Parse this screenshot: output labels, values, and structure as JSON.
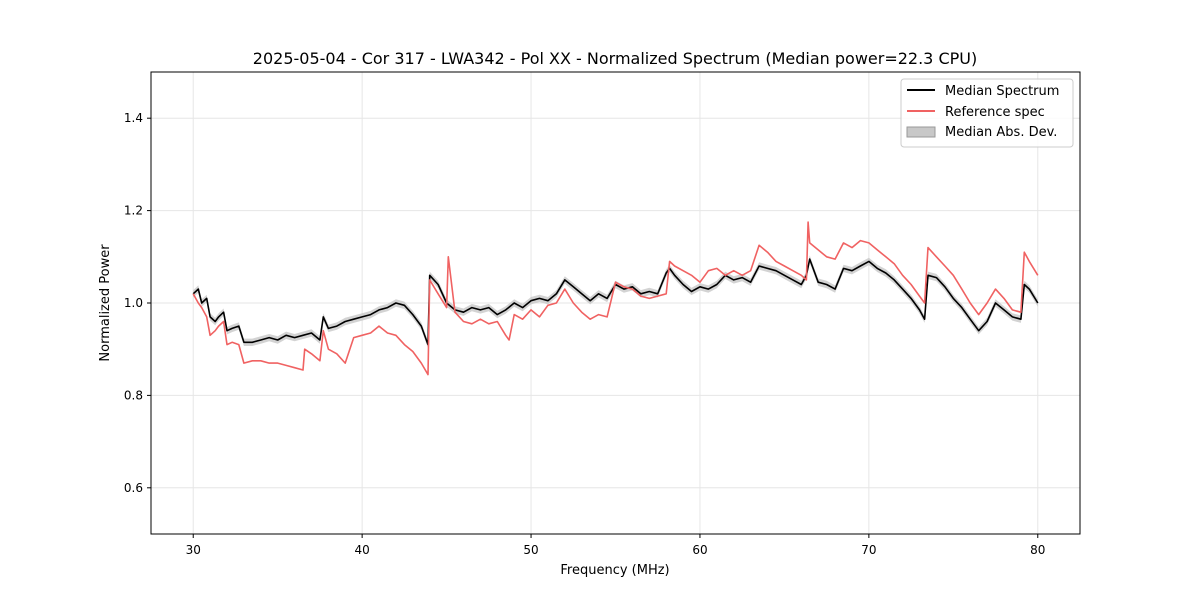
{
  "chart_data": {
    "type": "line",
    "title": "2025-05-04 - Cor 317 - LWA342 - Pol XX - Normalized Spectrum (Median power=22.3 CPU)",
    "xlabel": "Frequency (MHz)",
    "ylabel": "Normalized Power",
    "xlim": [
      27.5,
      82.5
    ],
    "ylim": [
      0.5,
      1.5
    ],
    "xticks": [
      30,
      40,
      50,
      60,
      70,
      80
    ],
    "yticks": [
      0.6,
      0.8,
      1.0,
      1.2,
      1.4
    ],
    "xtick_labels": [
      "30",
      "40",
      "50",
      "60",
      "70",
      "80"
    ],
    "ytick_labels": [
      "0.6",
      "0.8",
      "1.0",
      "1.2",
      "1.4"
    ],
    "grid": true,
    "legend_position": "top-right",
    "legend": [
      "Median Spectrum",
      "Reference spec",
      "Median Abs. Dev."
    ],
    "colors": {
      "median": "#000000",
      "reference": "#f06262",
      "mad": "#c8c8c8",
      "grid": "#e6e6e6"
    },
    "series": [
      {
        "name": "Median Spectrum",
        "x": [
          30.0,
          30.3,
          30.5,
          30.8,
          31.0,
          31.3,
          31.5,
          31.8,
          32.0,
          32.3,
          32.7,
          33.0,
          33.5,
          34.0,
          34.5,
          35.0,
          35.5,
          36.0,
          36.5,
          37.0,
          37.5,
          37.7,
          38.0,
          38.5,
          39.0,
          39.5,
          40.0,
          40.5,
          41.0,
          41.5,
          42.0,
          42.5,
          43.0,
          43.5,
          43.9,
          44.0,
          44.5,
          45.0,
          45.5,
          46.0,
          46.5,
          47.0,
          47.5,
          48.0,
          48.5,
          49.0,
          49.5,
          50.0,
          50.5,
          51.0,
          51.5,
          52.0,
          52.5,
          53.0,
          53.5,
          54.0,
          54.5,
          55.0,
          55.5,
          56.0,
          56.5,
          57.0,
          57.5,
          58.0,
          58.2,
          58.5,
          59.0,
          59.5,
          60.0,
          60.5,
          61.0,
          61.5,
          62.0,
          62.5,
          63.0,
          63.5,
          64.0,
          64.5,
          65.0,
          65.5,
          66.0,
          66.3,
          66.5,
          67.0,
          67.5,
          68.0,
          68.5,
          69.0,
          69.5,
          70.0,
          70.5,
          71.0,
          71.5,
          72.0,
          72.5,
          73.0,
          73.3,
          73.5,
          74.0,
          74.5,
          75.0,
          75.5,
          76.0,
          76.5,
          77.0,
          77.5,
          78.0,
          78.5,
          79.0,
          79.2,
          79.5,
          80.0
        ],
        "values": [
          1.02,
          1.03,
          1.0,
          1.01,
          0.97,
          0.96,
          0.97,
          0.98,
          0.94,
          0.945,
          0.95,
          0.915,
          0.915,
          0.92,
          0.925,
          0.92,
          0.93,
          0.925,
          0.93,
          0.935,
          0.92,
          0.97,
          0.945,
          0.95,
          0.96,
          0.965,
          0.97,
          0.975,
          0.985,
          0.99,
          1.0,
          0.995,
          0.975,
          0.95,
          0.91,
          1.06,
          1.04,
          1.0,
          0.985,
          0.98,
          0.99,
          0.985,
          0.99,
          0.975,
          0.985,
          1.0,
          0.99,
          1.005,
          1.01,
          1.005,
          1.02,
          1.05,
          1.035,
          1.02,
          1.005,
          1.02,
          1.01,
          1.04,
          1.03,
          1.035,
          1.02,
          1.025,
          1.02,
          1.065,
          1.075,
          1.06,
          1.04,
          1.025,
          1.035,
          1.03,
          1.04,
          1.06,
          1.05,
          1.055,
          1.045,
          1.08,
          1.075,
          1.07,
          1.06,
          1.05,
          1.04,
          1.06,
          1.095,
          1.045,
          1.04,
          1.03,
          1.075,
          1.07,
          1.08,
          1.09,
          1.075,
          1.065,
          1.05,
          1.03,
          1.01,
          0.985,
          0.965,
          1.06,
          1.055,
          1.035,
          1.01,
          0.99,
          0.965,
          0.94,
          0.96,
          1.0,
          0.985,
          0.97,
          0.965,
          1.04,
          1.03,
          1.0
        ]
      },
      {
        "name": "Reference spec",
        "x": [
          30.0,
          30.3,
          30.5,
          30.8,
          31.0,
          31.3,
          31.5,
          31.8,
          32.0,
          32.3,
          32.7,
          33.0,
          33.5,
          34.0,
          34.5,
          35.0,
          35.5,
          36.0,
          36.5,
          36.6,
          37.0,
          37.5,
          37.7,
          38.0,
          38.5,
          39.0,
          39.5,
          40.0,
          40.5,
          41.0,
          41.5,
          42.0,
          42.5,
          43.0,
          43.5,
          43.9,
          44.0,
          44.5,
          45.0,
          45.1,
          45.5,
          46.0,
          46.5,
          47.0,
          47.5,
          48.0,
          48.5,
          48.7,
          49.0,
          49.5,
          50.0,
          50.5,
          51.0,
          51.5,
          52.0,
          52.5,
          53.0,
          53.5,
          54.0,
          54.5,
          55.0,
          55.5,
          56.0,
          56.5,
          57.0,
          57.5,
          58.0,
          58.2,
          58.5,
          59.0,
          59.5,
          60.0,
          60.5,
          61.0,
          61.5,
          62.0,
          62.5,
          63.0,
          63.5,
          64.0,
          64.5,
          65.0,
          65.5,
          66.0,
          66.3,
          66.4,
          66.5,
          67.0,
          67.5,
          68.0,
          68.5,
          69.0,
          69.5,
          70.0,
          70.5,
          71.0,
          71.5,
          72.0,
          72.5,
          73.0,
          73.3,
          73.5,
          74.0,
          74.5,
          75.0,
          75.5,
          76.0,
          76.5,
          77.0,
          77.5,
          78.0,
          78.5,
          79.0,
          79.2,
          79.5,
          80.0
        ],
        "values": [
          1.02,
          1.0,
          0.99,
          0.97,
          0.93,
          0.94,
          0.95,
          0.96,
          0.91,
          0.915,
          0.91,
          0.87,
          0.875,
          0.875,
          0.87,
          0.87,
          0.865,
          0.86,
          0.855,
          0.9,
          0.89,
          0.875,
          0.94,
          0.9,
          0.89,
          0.87,
          0.925,
          0.93,
          0.935,
          0.95,
          0.935,
          0.93,
          0.91,
          0.895,
          0.87,
          0.845,
          1.05,
          1.02,
          0.99,
          1.1,
          0.98,
          0.96,
          0.955,
          0.965,
          0.955,
          0.96,
          0.93,
          0.92,
          0.975,
          0.965,
          0.985,
          0.97,
          0.995,
          1.0,
          1.03,
          1.0,
          0.98,
          0.965,
          0.975,
          0.97,
          1.045,
          1.035,
          1.03,
          1.015,
          1.01,
          1.015,
          1.02,
          1.09,
          1.08,
          1.07,
          1.06,
          1.045,
          1.07,
          1.075,
          1.06,
          1.07,
          1.06,
          1.07,
          1.125,
          1.11,
          1.09,
          1.08,
          1.07,
          1.06,
          1.05,
          1.175,
          1.13,
          1.115,
          1.1,
          1.095,
          1.13,
          1.12,
          1.135,
          1.13,
          1.115,
          1.1,
          1.085,
          1.06,
          1.04,
          1.015,
          1.0,
          1.12,
          1.1,
          1.08,
          1.06,
          1.03,
          1.0,
          0.975,
          1.0,
          1.03,
          1.01,
          0.985,
          0.98,
          1.11,
          1.09,
          1.06
        ]
      }
    ],
    "mad_band_halfwidth": 0.008
  }
}
